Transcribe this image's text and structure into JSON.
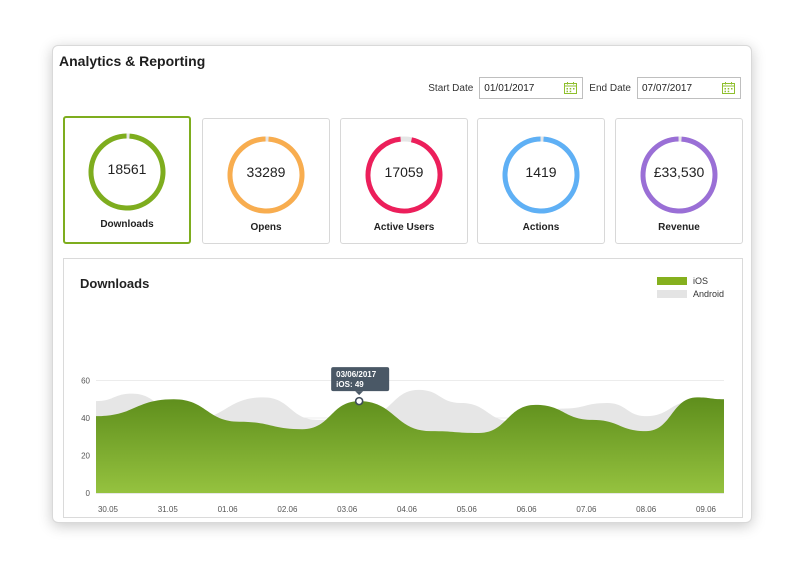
{
  "header": {
    "title": "Analytics & Reporting",
    "start_label": "Start Date",
    "start_value": "01/01/2017",
    "end_label": "End Date",
    "end_value": "07/07/2017",
    "calendar_icon": "calendar-icon"
  },
  "cards": [
    {
      "value": "18561",
      "label": "Downloads",
      "color": "#7ead1e",
      "fraction": 0.985,
      "selected": true
    },
    {
      "value": "33289",
      "label": "Opens",
      "color": "#f8ad4f",
      "fraction": 0.985,
      "selected": false
    },
    {
      "value": "17059",
      "label": "Active Users",
      "color": "#ec1f5b",
      "fraction": 0.95,
      "selected": false
    },
    {
      "value": "1419",
      "label": "Actions",
      "color": "#5fb0f5",
      "fraction": 0.985,
      "selected": false
    },
    {
      "value": "£33,530",
      "label": "Revenue",
      "color": "#9a6fd6",
      "fraction": 0.985,
      "selected": false
    }
  ],
  "chart": {
    "title": "Downloads",
    "legend": [
      {
        "name": "iOS",
        "color": "#85b01e"
      },
      {
        "name": "Android",
        "color": "#e4e4e4"
      }
    ],
    "tooltip": {
      "line1": "03/06/2017",
      "line2": "iOS: 49"
    }
  },
  "chart_data": {
    "type": "area",
    "categories": [
      "30.05",
      "31.05",
      "01.06",
      "02.06",
      "03.06",
      "04.06",
      "05.06",
      "06.06",
      "07.06",
      "08.06",
      "09.06"
    ],
    "y_ticks": [
      0,
      20,
      40,
      60
    ],
    "ylim": [
      0,
      60
    ],
    "grid": true,
    "legend_position": "top-right",
    "series": [
      {
        "name": "iOS",
        "color": "#7ead1e",
        "x": [
          0,
          1.1,
          2.2,
          3.25,
          4.2,
          5.4,
          6.2,
          7.15,
          8.1,
          9.0,
          9.85,
          10.25
        ],
        "values": [
          41,
          50,
          38,
          34,
          49,
          33,
          32,
          47,
          39,
          33,
          51,
          50
        ]
      },
      {
        "name": "Android",
        "color": "#e6e6e6",
        "x": [
          0,
          0.4,
          1.35,
          2.6,
          3.5,
          4.3,
          5.2,
          5.9,
          6.8,
          7.6,
          8.35,
          9.0,
          9.8,
          10.25
        ],
        "values": [
          49,
          53,
          39,
          51,
          39,
          41,
          55,
          48,
          38,
          45,
          48,
          41,
          49,
          50
        ]
      }
    ]
  }
}
